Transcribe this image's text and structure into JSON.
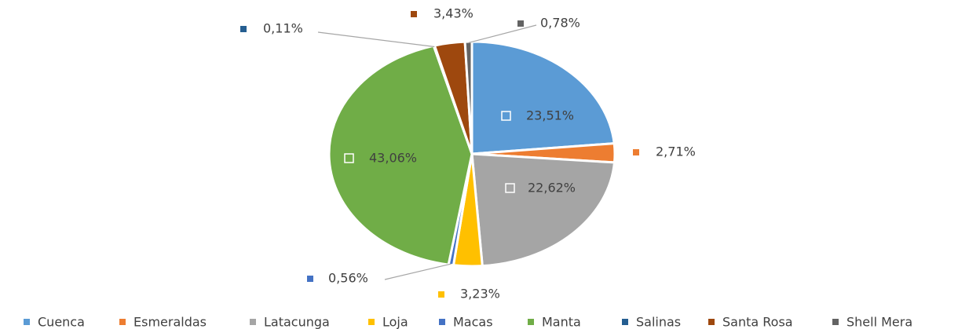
{
  "chart_data": {
    "type": "pie",
    "categories": [
      "Cuenca",
      "Esmeraldas",
      "Latacunga",
      "Loja",
      "Macas",
      "Manta",
      "Salinas",
      "Santa Rosa",
      "Shell Mera"
    ],
    "values": [
      23.51,
      2.71,
      22.62,
      3.23,
      0.56,
      43.06,
      0.11,
      3.43,
      0.78
    ],
    "value_labels": [
      "23,51%",
      "2,71%",
      "22,62%",
      "3,23%",
      "0,56%",
      "43,06%",
      "0,11%",
      "3,43%",
      "0,78%"
    ],
    "colors": [
      "#5b9bd5",
      "#ed7d31",
      "#a5a5a5",
      "#ffc000",
      "#4472c4",
      "#70ad47",
      "#255e91",
      "#9e480e",
      "#636363"
    ],
    "legend": "bottom"
  }
}
